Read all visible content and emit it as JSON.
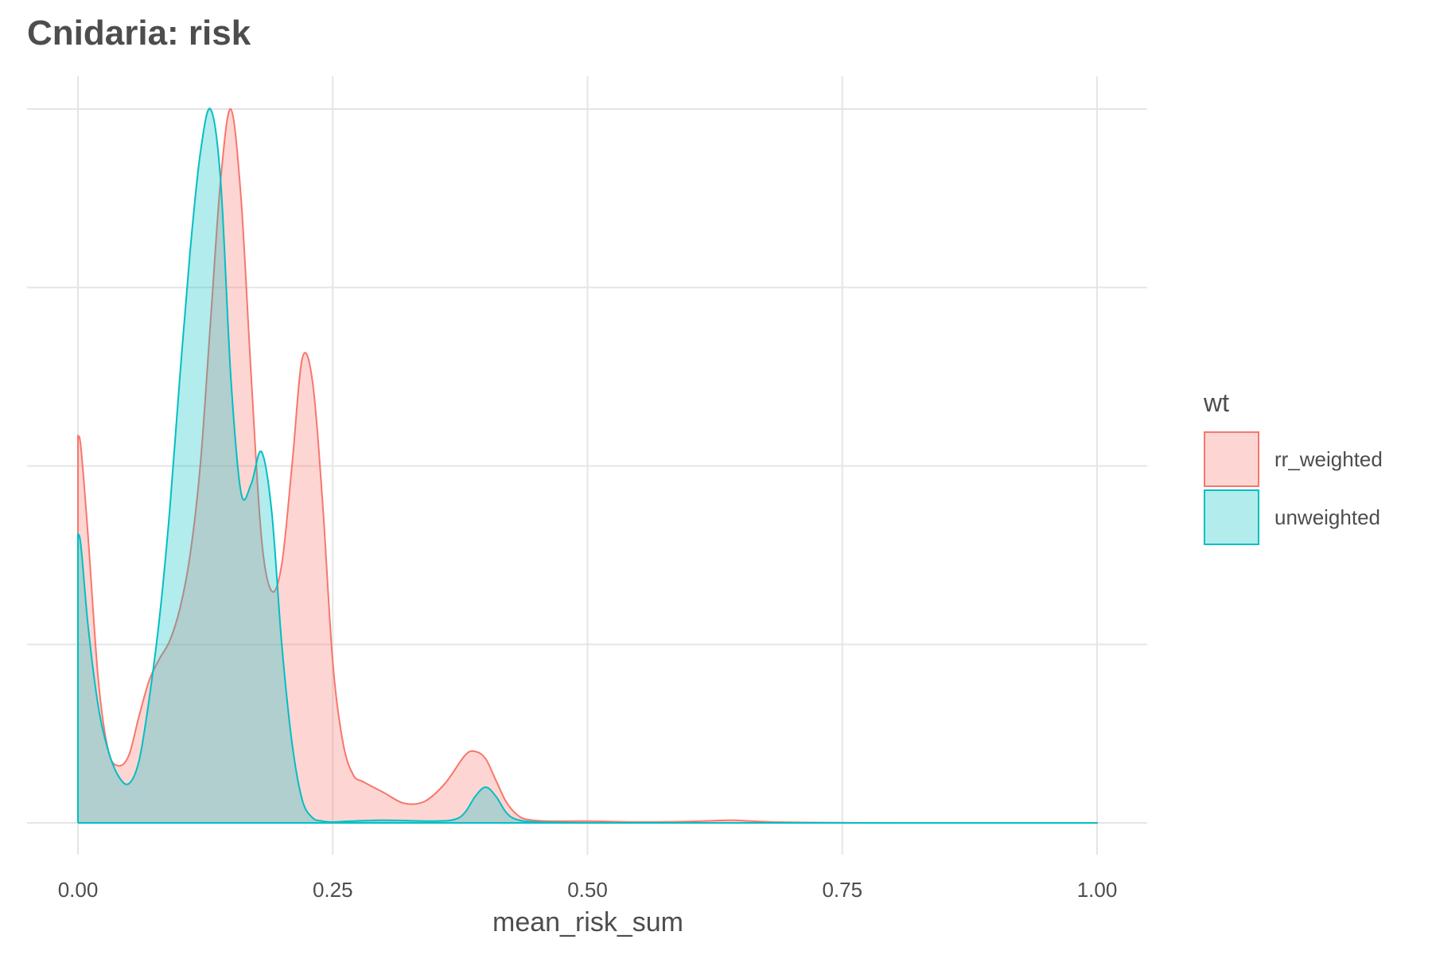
{
  "chart_data": {
    "type": "area",
    "title": "Cnidaria: risk",
    "xlabel": "mean_risk_sum",
    "ylabel": "",
    "xlim": [
      0,
      1
    ],
    "ylim": [
      0,
      4
    ],
    "x_ticks": [
      0,
      0.25,
      0.5,
      0.75,
      1
    ],
    "x_tick_labels": [
      "0.00",
      "0.25",
      "0.50",
      "0.75",
      "1.00"
    ],
    "y_gridlines": [
      0,
      1,
      2,
      3,
      4
    ],
    "grid": true,
    "legend": {
      "title": "wt",
      "position": "right"
    },
    "series": [
      {
        "name": "rr_weighted",
        "color": "#f8766d",
        "fill": "#f8766d",
        "fill_opacity": 0.3,
        "x": [
          0,
          0.003,
          0.01,
          0.02,
          0.03,
          0.04,
          0.05,
          0.06,
          0.07,
          0.08,
          0.09,
          0.1,
          0.11,
          0.12,
          0.13,
          0.14,
          0.15,
          0.16,
          0.17,
          0.18,
          0.19,
          0.2,
          0.21,
          0.22,
          0.23,
          0.24,
          0.25,
          0.26,
          0.27,
          0.28,
          0.3,
          0.32,
          0.34,
          0.36,
          0.38,
          0.39,
          0.4,
          0.41,
          0.42,
          0.43,
          0.44,
          0.46,
          0.5,
          0.55,
          0.6,
          0.64,
          0.66,
          0.7,
          0.8,
          0.9,
          1.0
        ],
        "y": [
          2.17,
          2.1,
          1.6,
          0.8,
          0.4,
          0.32,
          0.38,
          0.6,
          0.8,
          0.92,
          1.02,
          1.2,
          1.5,
          2.0,
          2.8,
          3.6,
          4.0,
          3.5,
          2.5,
          1.6,
          1.3,
          1.45,
          2.0,
          2.6,
          2.48,
          1.8,
          0.9,
          0.45,
          0.27,
          0.23,
          0.17,
          0.11,
          0.12,
          0.22,
          0.38,
          0.4,
          0.36,
          0.24,
          0.12,
          0.05,
          0.02,
          0.01,
          0.01,
          0.005,
          0.008,
          0.015,
          0.01,
          0.003,
          0,
          0,
          0
        ]
      },
      {
        "name": "unweighted",
        "color": "#00bfc4",
        "fill": "#00bfc4",
        "fill_opacity": 0.3,
        "x": [
          0,
          0.003,
          0.01,
          0.02,
          0.03,
          0.04,
          0.05,
          0.06,
          0.07,
          0.08,
          0.09,
          0.1,
          0.11,
          0.12,
          0.13,
          0.14,
          0.15,
          0.16,
          0.17,
          0.18,
          0.19,
          0.2,
          0.21,
          0.22,
          0.23,
          0.24,
          0.25,
          0.27,
          0.3,
          0.35,
          0.37,
          0.38,
          0.39,
          0.4,
          0.41,
          0.42,
          0.43,
          0.45,
          0.5,
          0.6,
          0.7,
          0.8,
          0.9,
          1.0
        ],
        "y": [
          1.62,
          1.55,
          1.1,
          0.65,
          0.4,
          0.26,
          0.22,
          0.35,
          0.7,
          1.15,
          1.75,
          2.5,
          3.2,
          3.75,
          4.0,
          3.6,
          2.5,
          1.85,
          1.9,
          2.08,
          1.75,
          1.0,
          0.45,
          0.13,
          0.03,
          0.01,
          0.005,
          0.01,
          0.015,
          0.01,
          0.02,
          0.06,
          0.15,
          0.2,
          0.15,
          0.06,
          0.02,
          0.005,
          0,
          0,
          0,
          0,
          0,
          0
        ]
      }
    ]
  }
}
